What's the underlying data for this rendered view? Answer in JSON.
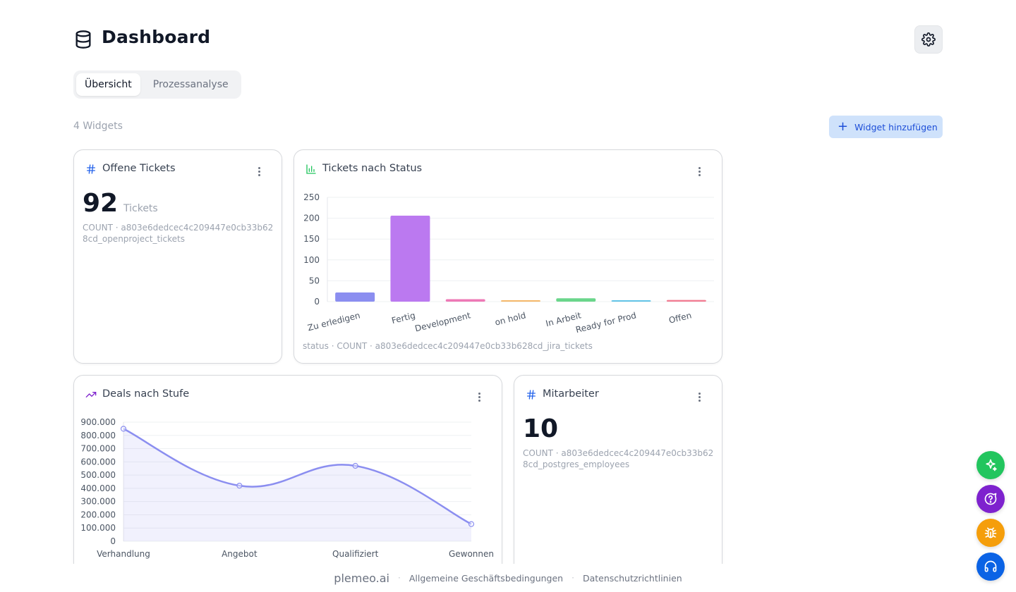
{
  "header": {
    "title": "Dashboard",
    "icon": "database-icon",
    "settings_icon": "gear-icon"
  },
  "tabs": [
    {
      "label": "Übersicht",
      "active": true
    },
    {
      "label": "Prozessanalyse",
      "active": false
    }
  ],
  "toolbar": {
    "widget_count": "4 Widgets",
    "add_label": "Widget hinzufügen"
  },
  "widgets": {
    "offene_tickets": {
      "title": "Offene Tickets",
      "icon": "hash-icon",
      "value": "92",
      "unit": "Tickets",
      "meta": "COUNT · a803e6dedcec4c209447e0cb33b628cd_openproject_tickets"
    },
    "tickets_status": {
      "title": "Tickets nach Status",
      "icon": "bar-chart-icon",
      "caption": "status · COUNT · a803e6dedcec4c209447e0cb33b628cd_jira_tickets"
    },
    "deals_stufe": {
      "title": "Deals nach Stufe",
      "icon": "trending-up-icon"
    },
    "mitarbeiter": {
      "title": "Mitarbeiter",
      "icon": "hash-icon",
      "value": "10",
      "meta": "COUNT · a803e6dedcec4c209447e0cb33b628cd_postgres_employees"
    }
  },
  "chart_data": [
    {
      "type": "bar",
      "categories": [
        "Zu erledigen",
        "Fertig",
        "Development",
        "on hold",
        "In Arbeit",
        "Ready for Prod",
        "Offen"
      ],
      "values": [
        22,
        206,
        6,
        1,
        8,
        3,
        4
      ],
      "colors": [
        "#8b8ef0",
        "#bb79f0",
        "#ee79b6",
        "#f5b86a",
        "#6ad68b",
        "#63c4e7",
        "#f27d93"
      ],
      "yticks": [
        0,
        50,
        100,
        150,
        200,
        250
      ],
      "ylim": [
        0,
        250
      ]
    },
    {
      "type": "line",
      "categories": [
        "Verhandlung",
        "Angebot",
        "Qualifiziert",
        "Gewonnen"
      ],
      "values": [
        850000,
        420000,
        570000,
        130000
      ],
      "yticks": [
        "0",
        "100.000",
        "200.000",
        "300.000",
        "400.000",
        "500.000",
        "600.000",
        "700.000",
        "800.000",
        "900.000"
      ],
      "ylim": [
        0,
        900000
      ],
      "color": "#8b8ef0"
    }
  ],
  "footer": {
    "brand": "plemeo.ai",
    "terms": "Allgemeine Geschäftsbedingungen",
    "privacy": "Datenschutzrichtlinien"
  },
  "fabs": [
    {
      "icon": "sparkles-icon",
      "color": "#22c55e"
    },
    {
      "icon": "help-chat-icon",
      "color": "#7e22ce"
    },
    {
      "icon": "bug-icon",
      "color": "#f59e0b"
    },
    {
      "icon": "headset-icon",
      "color": "#0b63e5"
    }
  ]
}
